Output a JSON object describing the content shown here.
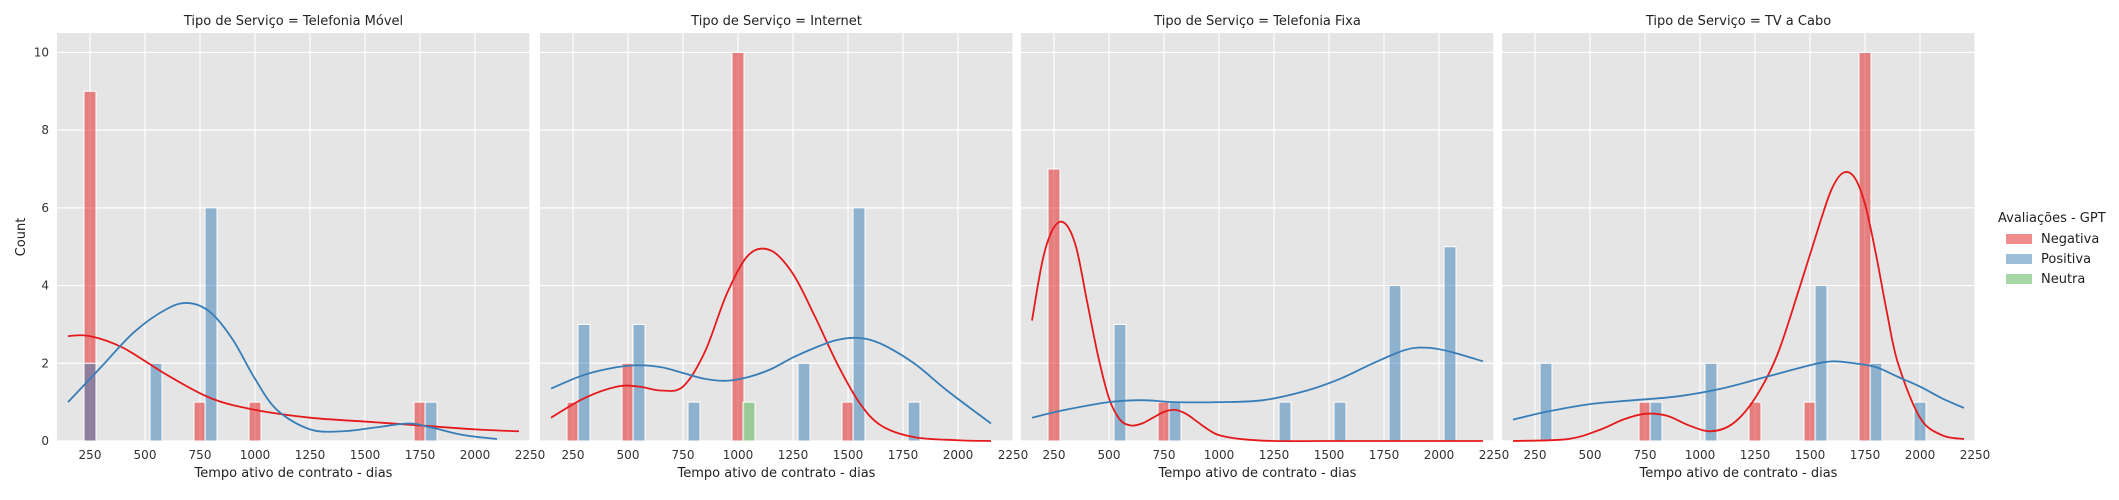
{
  "chart_data": {
    "type": "bar",
    "ylabel": "Count",
    "xlabel": "Tempo ativo de contrato - dias",
    "xlim": [
      100,
      2250
    ],
    "ylim": [
      0,
      10.5
    ],
    "x_ticks": [
      250,
      500,
      750,
      1000,
      1250,
      1500,
      1750,
      2000,
      2250
    ],
    "y_ticks": [
      0,
      2,
      4,
      6,
      8,
      10
    ],
    "legend": {
      "title": "Avaliações - GPT",
      "placement": "right",
      "entries": [
        {
          "name": "Negativa",
          "color": "#e41a1c"
        },
        {
          "name": "Positiva",
          "color": "#377eb8"
        },
        {
          "name": "Neutra",
          "color": "#4daf4a"
        }
      ]
    },
    "panels": [
      {
        "title": "Tipo de Serviço = Telefonia Móvel",
        "bars": [
          {
            "series": "Negativa",
            "x": 250,
            "value": 9
          },
          {
            "series": "Positiva",
            "x": 250,
            "value": 2
          },
          {
            "series": "Positiva",
            "x": 550,
            "value": 2
          },
          {
            "series": "Negativa",
            "x": 750,
            "value": 1
          },
          {
            "series": "Positiva",
            "x": 800,
            "value": 6
          },
          {
            "series": "Negativa",
            "x": 1000,
            "value": 1
          },
          {
            "series": "Negativa",
            "x": 1750,
            "value": 1
          },
          {
            "series": "Positiva",
            "x": 1800,
            "value": 1
          }
        ],
        "kde": [
          {
            "series": "Negativa",
            "x": [
              150,
              250,
              400,
              600,
              800,
              1000,
              1250,
              1500,
              1750,
              2000,
              2200
            ],
            "y": [
              2.7,
              2.7,
              2.4,
              1.7,
              1.1,
              0.8,
              0.6,
              0.5,
              0.4,
              0.3,
              0.25
            ]
          },
          {
            "series": "Positiva",
            "x": [
              150,
              300,
              450,
              600,
              700,
              800,
              900,
              1000,
              1100,
              1250,
              1400,
              1550,
              1700,
              1800,
              1950,
              2100
            ],
            "y": [
              1.0,
              1.9,
              2.8,
              3.4,
              3.55,
              3.3,
              2.6,
              1.6,
              0.8,
              0.3,
              0.25,
              0.35,
              0.45,
              0.35,
              0.15,
              0.05
            ]
          }
        ]
      },
      {
        "title": "Tipo de Serviço = Internet",
        "bars": [
          {
            "series": "Negativa",
            "x": 250,
            "value": 1
          },
          {
            "series": "Positiva",
            "x": 300,
            "value": 3
          },
          {
            "series": "Negativa",
            "x": 500,
            "value": 2
          },
          {
            "series": "Positiva",
            "x": 550,
            "value": 3
          },
          {
            "series": "Positiva",
            "x": 800,
            "value": 1
          },
          {
            "series": "Negativa",
            "x": 1000,
            "value": 10
          },
          {
            "series": "Neutra",
            "x": 1050,
            "value": 1
          },
          {
            "series": "Positiva",
            "x": 1300,
            "value": 2
          },
          {
            "series": "Negativa",
            "x": 1500,
            "value": 1
          },
          {
            "series": "Positiva",
            "x": 1550,
            "value": 6
          },
          {
            "series": "Positiva",
            "x": 1800,
            "value": 1
          }
        ],
        "kde": [
          {
            "series": "Negativa",
            "x": [
              150,
              300,
              450,
              550,
              650,
              750,
              850,
              950,
              1050,
              1150,
              1250,
              1350,
              1450,
              1550,
              1650,
              1800,
              2000,
              2150
            ],
            "y": [
              0.6,
              1.1,
              1.4,
              1.4,
              1.3,
              1.4,
              2.3,
              3.8,
              4.8,
              4.9,
              4.3,
              3.2,
              2.0,
              1.0,
              0.4,
              0.1,
              0.02,
              0.0
            ]
          },
          {
            "series": "Positiva",
            "x": [
              150,
              300,
              450,
              550,
              650,
              750,
              850,
              950,
              1050,
              1150,
              1250,
              1350,
              1450,
              1550,
              1650,
              1800,
              1950,
              2150
            ],
            "y": [
              1.35,
              1.7,
              1.9,
              1.95,
              1.9,
              1.75,
              1.6,
              1.55,
              1.65,
              1.85,
              2.15,
              2.4,
              2.6,
              2.65,
              2.5,
              2.0,
              1.3,
              0.45
            ]
          }
        ]
      },
      {
        "title": "Tipo de Serviço = Telefonia Fixa",
        "bars": [
          {
            "series": "Negativa",
            "x": 250,
            "value": 7
          },
          {
            "series": "Positiva",
            "x": 550,
            "value": 3
          },
          {
            "series": "Negativa",
            "x": 750,
            "value": 1
          },
          {
            "series": "Positiva",
            "x": 800,
            "value": 1
          },
          {
            "series": "Positiva",
            "x": 1300,
            "value": 1
          },
          {
            "series": "Positiva",
            "x": 1550,
            "value": 1
          },
          {
            "series": "Positiva",
            "x": 1800,
            "value": 4
          },
          {
            "series": "Positiva",
            "x": 2050,
            "value": 5
          }
        ],
        "kde": [
          {
            "series": "Negativa",
            "x": [
              150,
              200,
              250,
              300,
              350,
              400,
              450,
              500,
              550,
              600,
              650,
              700,
              750,
              800,
              850,
              900,
              950,
              1000,
              1100,
              1250,
              1500,
              2000,
              2200
            ],
            "y": [
              3.1,
              4.7,
              5.5,
              5.6,
              5.0,
              3.6,
              2.2,
              1.1,
              0.55,
              0.4,
              0.45,
              0.6,
              0.75,
              0.8,
              0.7,
              0.5,
              0.3,
              0.15,
              0.05,
              0.0,
              0.0,
              0.0,
              0.0
            ]
          },
          {
            "series": "Positiva",
            "x": [
              150,
              300,
              500,
              650,
              800,
              1000,
              1200,
              1400,
              1550,
              1700,
              1850,
              1950,
              2050,
              2200
            ],
            "y": [
              0.6,
              0.8,
              1.0,
              1.05,
              1.0,
              1.0,
              1.05,
              1.3,
              1.6,
              2.0,
              2.35,
              2.4,
              2.3,
              2.05
            ]
          }
        ]
      },
      {
        "title": "Tipo de Serviço = TV a Cabo",
        "bars": [
          {
            "series": "Positiva",
            "x": 300,
            "value": 2
          },
          {
            "series": "Negativa",
            "x": 750,
            "value": 1
          },
          {
            "series": "Positiva",
            "x": 800,
            "value": 1
          },
          {
            "series": "Positiva",
            "x": 1050,
            "value": 2
          },
          {
            "series": "Negativa",
            "x": 1250,
            "value": 1
          },
          {
            "series": "Negativa",
            "x": 1500,
            "value": 1
          },
          {
            "series": "Positiva",
            "x": 1550,
            "value": 4
          },
          {
            "series": "Negativa",
            "x": 1750,
            "value": 10
          },
          {
            "series": "Positiva",
            "x": 1800,
            "value": 2
          },
          {
            "series": "Positiva",
            "x": 2000,
            "value": 1
          }
        ],
        "kde": [
          {
            "series": "Negativa",
            "x": [
              150,
              400,
              550,
              650,
              750,
              850,
              950,
              1050,
              1150,
              1250,
              1350,
              1450,
              1550,
              1600,
              1650,
              1700,
              1750,
              1800,
              1850,
              1900,
              2000,
              2100,
              2200
            ],
            "y": [
              0.0,
              0.05,
              0.3,
              0.55,
              0.7,
              0.65,
              0.4,
              0.25,
              0.45,
              1.1,
              2.2,
              3.9,
              5.7,
              6.5,
              6.9,
              6.8,
              6.1,
              4.8,
              3.3,
              2.0,
              0.6,
              0.15,
              0.05
            ]
          },
          {
            "series": "Positiva",
            "x": [
              150,
              300,
              500,
              700,
              900,
              1100,
              1300,
              1500,
              1600,
              1700,
              1800,
              1900,
              2000,
              2100,
              2200
            ],
            "y": [
              0.55,
              0.75,
              0.95,
              1.05,
              1.15,
              1.35,
              1.65,
              1.95,
              2.05,
              2.0,
              1.9,
              1.65,
              1.4,
              1.1,
              0.85
            ]
          }
        ]
      }
    ]
  }
}
